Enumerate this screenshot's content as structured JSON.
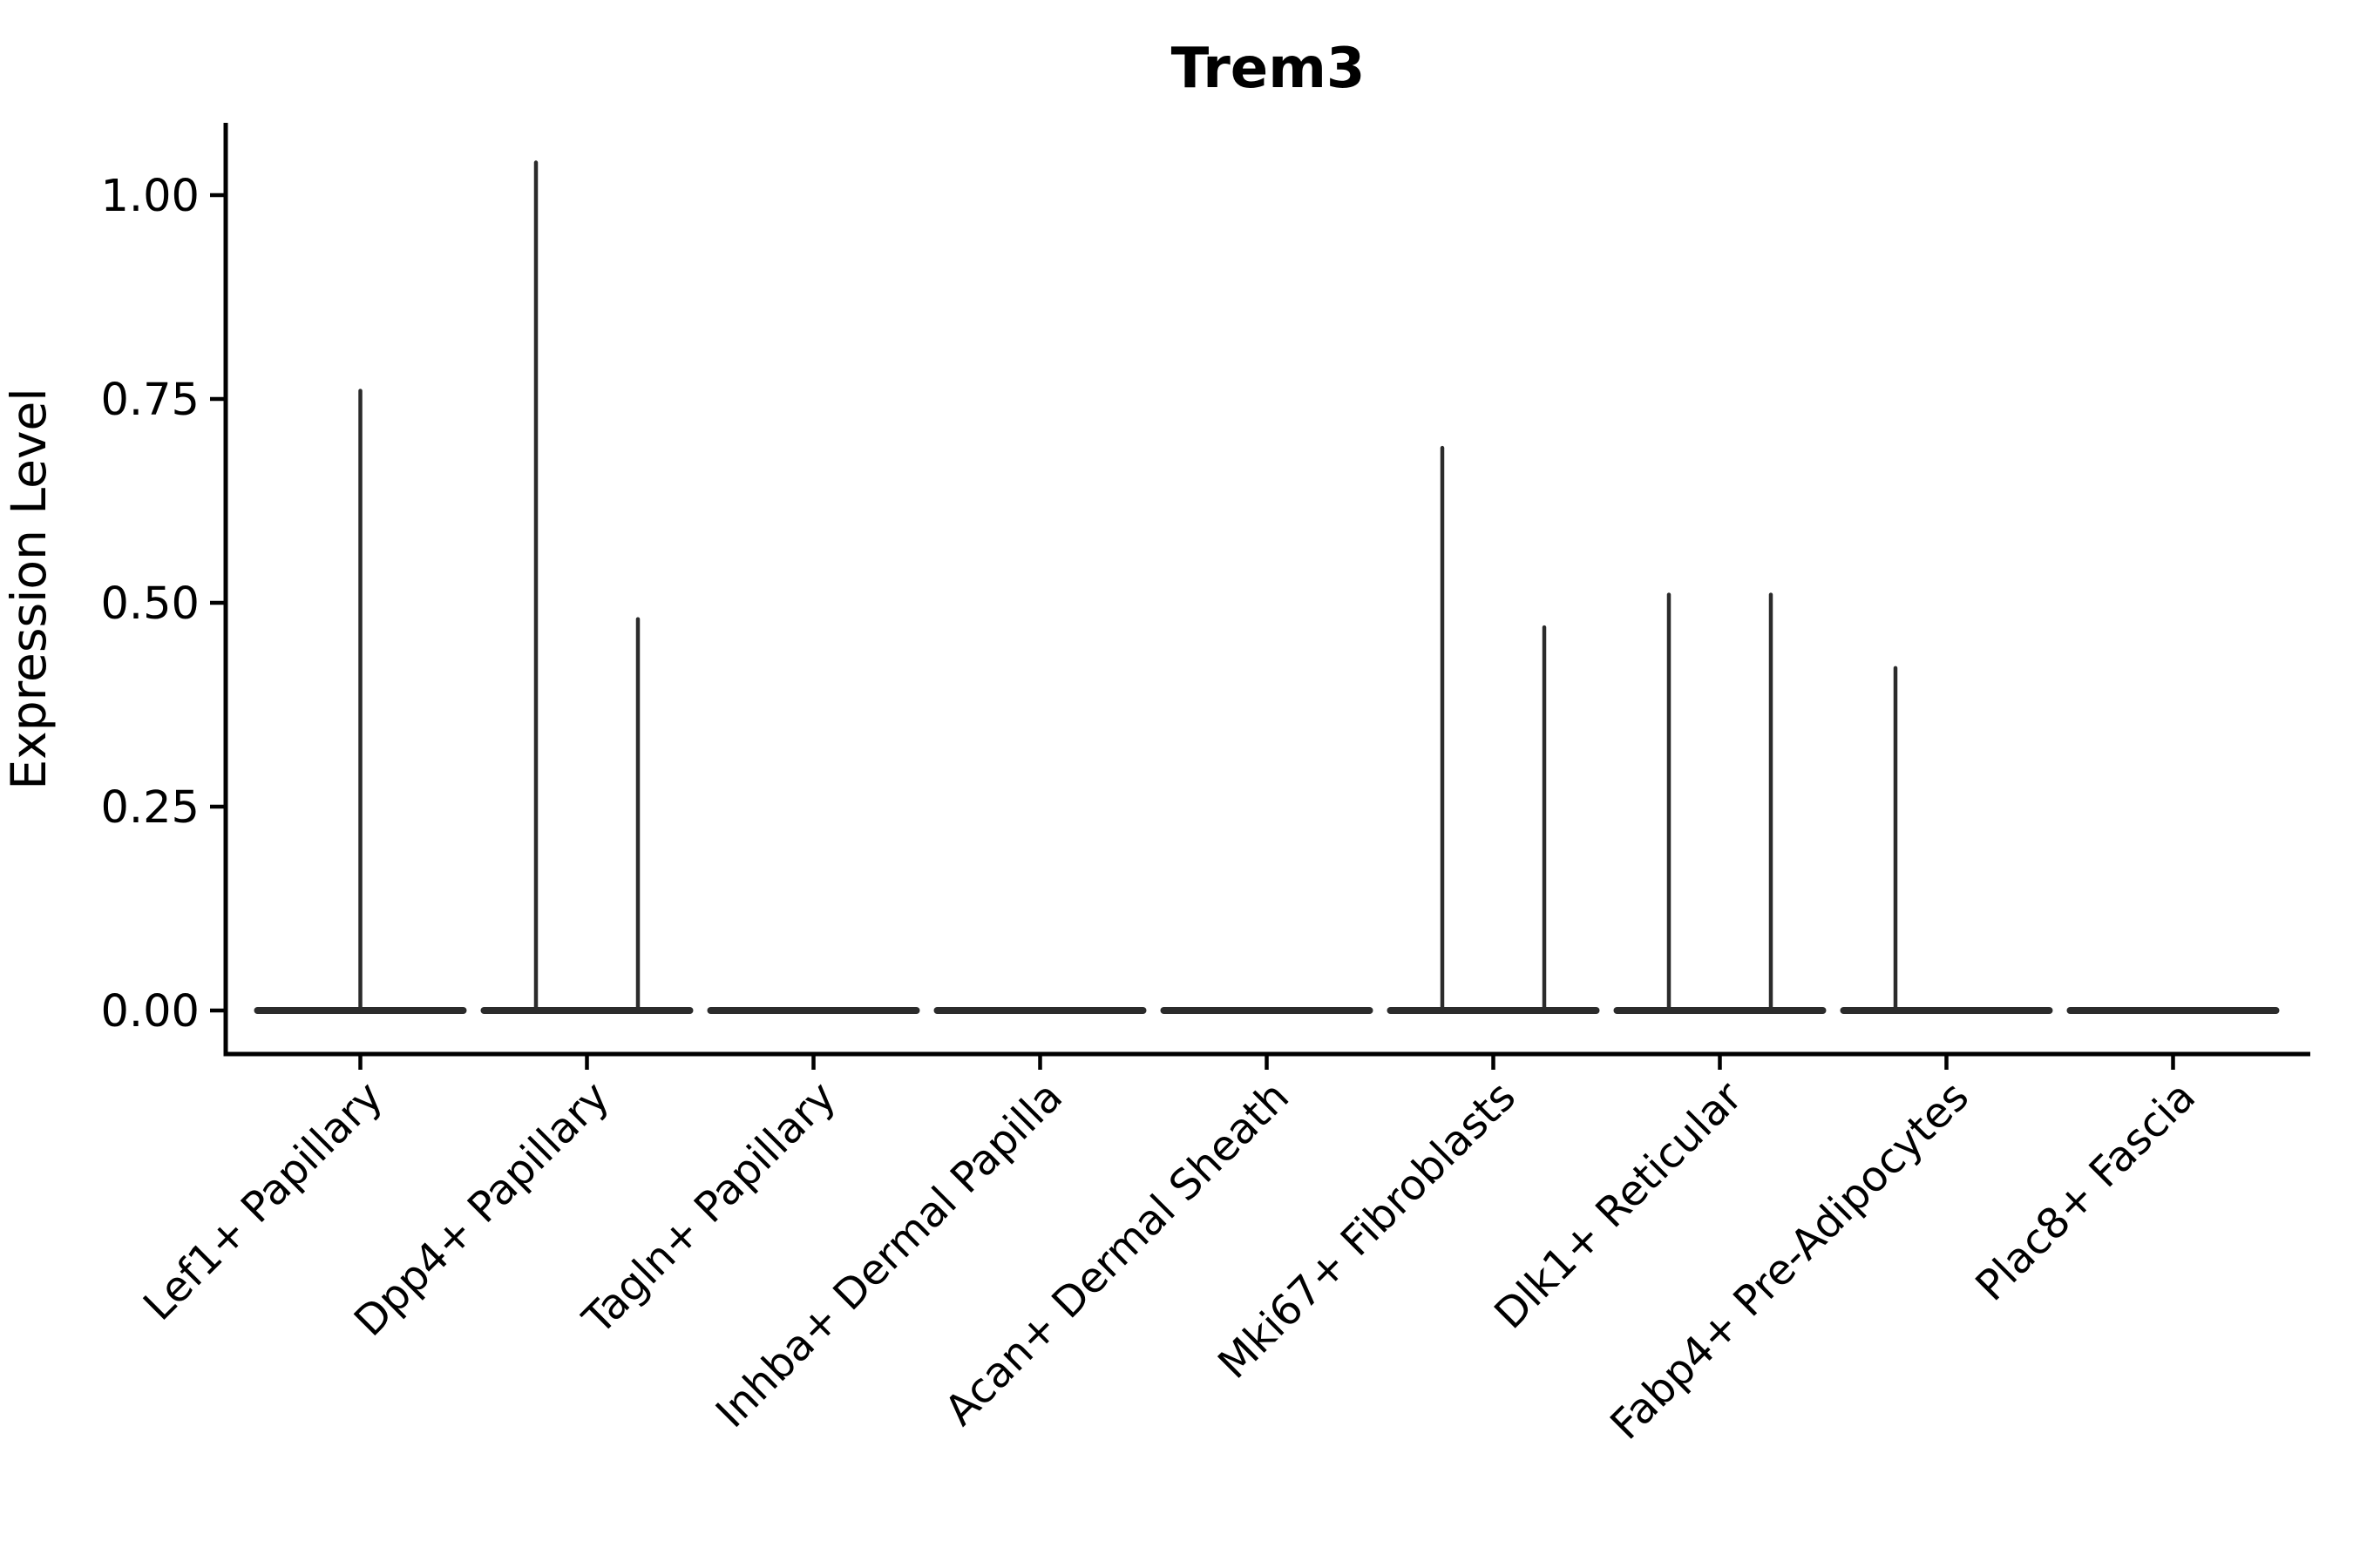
{
  "figure": {
    "background_color": "#ffffff",
    "axis_color": "#000000",
    "violin_color": "#2b2b2b"
  },
  "chart_data": {
    "type": "violin",
    "title": "Trem3",
    "xlabel": "",
    "ylabel": "Expression Level",
    "ylim": [
      0,
      1.09
    ],
    "yticks": [
      0.0,
      0.25,
      0.5,
      0.75,
      1.0
    ],
    "ytick_labels": [
      "0.00",
      "0.25",
      "0.50",
      "0.75",
      "1.00"
    ],
    "grid": false,
    "legend": null,
    "categories": [
      "Lef1+ Papillary",
      "Dpp4+ Papillary",
      "Tagln+ Papillary",
      "Inhba+ Dermal Papilla",
      "Acan+ Dermal Sheath",
      "Mki67+ Fibroblasts",
      "Dlk1+ Reticular",
      "Fabp4+ Pre-Adipocytes",
      "Plac8+ Fascia"
    ],
    "violins": [
      {
        "category": "Lef1+ Papillary",
        "baseline_value": 0.0,
        "spikes": [
          {
            "offset_frac": 0.0,
            "max": 0.76
          }
        ]
      },
      {
        "category": "Dpp4+ Papillary",
        "baseline_value": 0.0,
        "spikes": [
          {
            "offset_frac": -0.225,
            "max": 1.04
          },
          {
            "offset_frac": 0.225,
            "max": 0.48
          }
        ]
      },
      {
        "category": "Tagln+ Papillary",
        "baseline_value": 0.0,
        "spikes": []
      },
      {
        "category": "Inhba+ Dermal Papilla",
        "baseline_value": 0.0,
        "spikes": []
      },
      {
        "category": "Acan+ Dermal Sheath",
        "baseline_value": 0.0,
        "spikes": []
      },
      {
        "category": "Mki67+ Fibroblasts",
        "baseline_value": 0.0,
        "spikes": [
          {
            "offset_frac": -0.225,
            "max": 0.69
          },
          {
            "offset_frac": 0.225,
            "max": 0.47
          }
        ]
      },
      {
        "category": "Dlk1+ Reticular",
        "baseline_value": 0.0,
        "spikes": [
          {
            "offset_frac": -0.225,
            "max": 0.51
          },
          {
            "offset_frac": 0.225,
            "max": 0.51
          }
        ]
      },
      {
        "category": "Fabp4+ Pre-Adipocytes",
        "baseline_value": 0.0,
        "spikes": [
          {
            "offset_frac": -0.225,
            "max": 0.42
          }
        ]
      },
      {
        "category": "Plac8+ Fascia",
        "baseline_value": 0.0,
        "spikes": []
      }
    ]
  }
}
